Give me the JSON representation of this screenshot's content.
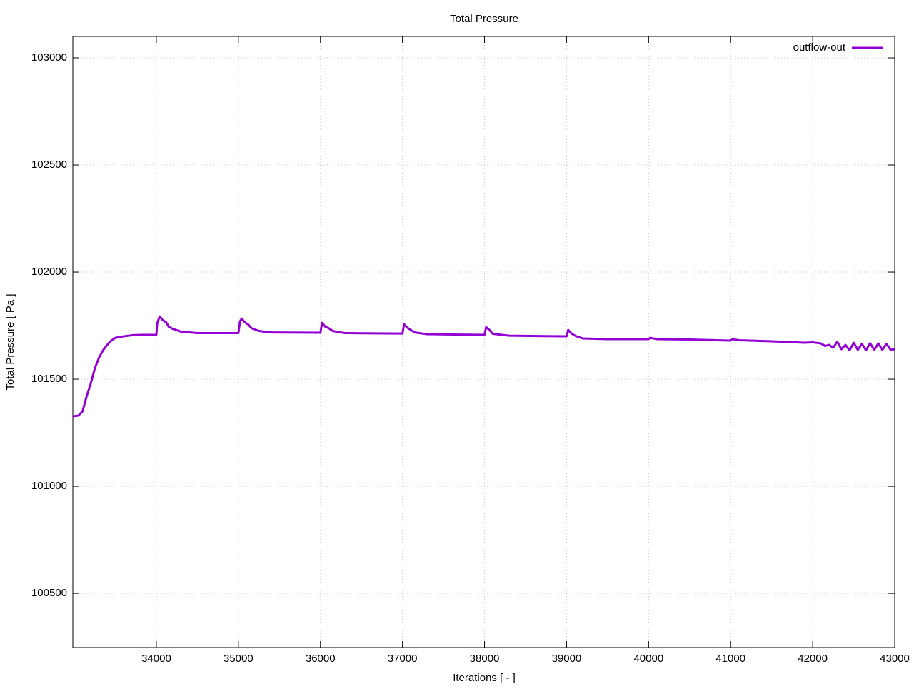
{
  "chart_data": {
    "type": "line",
    "title": "Total Pressure",
    "xlabel": "Iterations [ - ]",
    "ylabel": "Total Pressure [ Pa ]",
    "x": [
      32982,
      33050,
      33100,
      33150,
      33200,
      33250,
      33300,
      33350,
      33400,
      33450,
      33500,
      33600,
      33700,
      33800,
      34000,
      34010,
      34040,
      34080,
      34120,
      34150,
      34200,
      34300,
      34500,
      35000,
      35020,
      35040,
      35080,
      35120,
      35160,
      35250,
      35400,
      36000,
      36020,
      36060,
      36100,
      36150,
      36300,
      37000,
      37020,
      37060,
      37100,
      37150,
      37300,
      38000,
      38020,
      38060,
      38100,
      38300,
      39000,
      39020,
      39060,
      39120,
      39200,
      39500,
      40000,
      40020,
      40100,
      40500,
      41000,
      41020,
      41100,
      41500,
      41900,
      42000,
      42100,
      42150,
      42200,
      42250,
      42300,
      42350,
      42400,
      42450,
      42500,
      42550,
      42600,
      42650,
      42700,
      42750,
      42800,
      42850,
      42900,
      42950,
      43000
    ],
    "series": [
      {
        "name": "outflow-out",
        "color": "#9400d3",
        "values": [
          101327,
          101330,
          101350,
          101420,
          101480,
          101550,
          101600,
          101635,
          101660,
          101680,
          101693,
          101700,
          101705,
          101707,
          101707,
          101760,
          101793,
          101775,
          101765,
          101745,
          101735,
          101722,
          101715,
          101715,
          101770,
          101783,
          101765,
          101755,
          101738,
          101725,
          101718,
          101717,
          101763,
          101745,
          101738,
          101725,
          101715,
          101713,
          101757,
          101740,
          101730,
          101718,
          101710,
          101707,
          101743,
          101730,
          101712,
          101703,
          101700,
          101730,
          101713,
          101700,
          101690,
          101687,
          101687,
          101693,
          101687,
          101685,
          101680,
          101687,
          101682,
          101677,
          101670,
          101672,
          101667,
          101655,
          101660,
          101647,
          101675,
          101640,
          101660,
          101635,
          101670,
          101637,
          101665,
          101635,
          101668,
          101637,
          101667,
          101637,
          101665,
          101637,
          101640
        ]
      }
    ],
    "xlim": [
      32982,
      43000
    ],
    "ylim": [
      100247,
      103100
    ],
    "xticks": [
      34000,
      35000,
      36000,
      37000,
      38000,
      39000,
      40000,
      41000,
      42000,
      43000
    ],
    "yticks": [
      100500,
      101000,
      101500,
      102000,
      102500,
      103000
    ],
    "grid": true,
    "legend": "top-right"
  }
}
